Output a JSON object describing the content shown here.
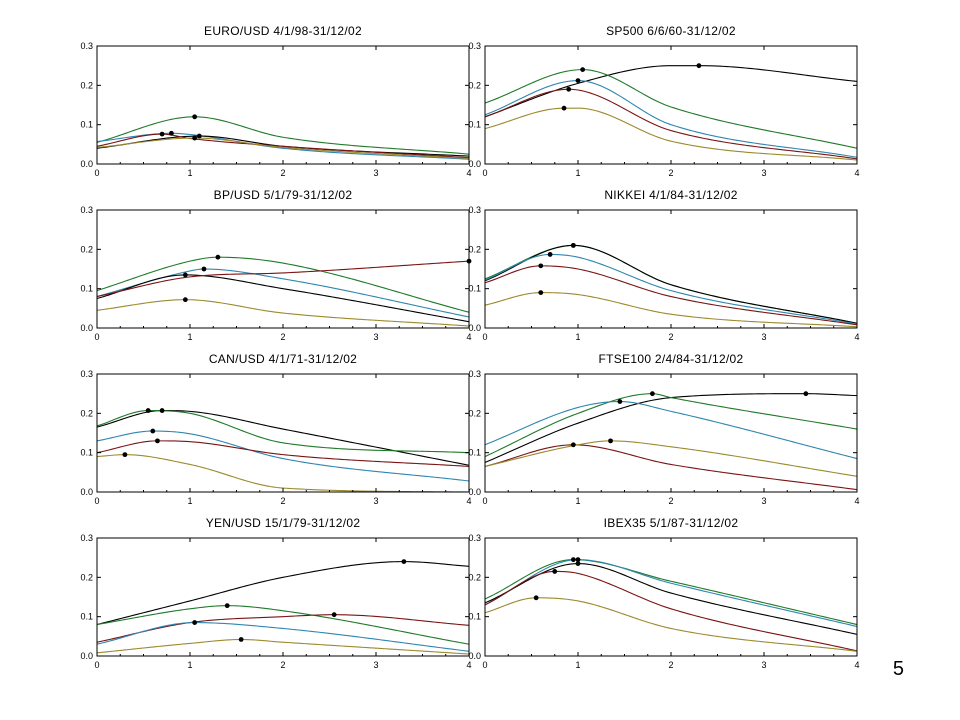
{
  "page": {
    "number": "5"
  },
  "colors": {
    "black": "#000000",
    "green": "#1f7a2a",
    "blue": "#2f86b0",
    "red": "#7a1414",
    "olive": "#9c8a2e"
  },
  "chart_data": [
    {
      "type": "line",
      "title": "EURO/USD 4/1/98-31/12/02",
      "xlim": [
        0,
        4
      ],
      "ylim": [
        0,
        0.3
      ],
      "xticks": [
        "0",
        "1",
        "2",
        "3",
        "4"
      ],
      "yticks": [
        "0.0",
        "0.1",
        "0.2",
        "0.3"
      ],
      "series": [
        {
          "color": "green",
          "peak": [
            1.05,
            0.12
          ],
          "values": [
            0.055,
            0.12,
            0.068,
            0.025
          ]
        },
        {
          "color": "blue",
          "peak": [
            0.8,
            0.078
          ],
          "values": [
            0.057,
            0.075,
            0.04,
            0.012
          ]
        },
        {
          "color": "black",
          "peak": [
            1.1,
            0.071
          ],
          "values": [
            0.04,
            0.07,
            0.045,
            0.02
          ]
        },
        {
          "color": "red",
          "peak": [
            0.7,
            0.076
          ],
          "values": [
            0.045,
            0.065,
            0.045,
            0.016
          ]
        },
        {
          "color": "olive",
          "peak": [
            1.05,
            0.066
          ],
          "values": [
            0.042,
            0.066,
            0.042,
            0.014
          ]
        }
      ]
    },
    {
      "type": "line",
      "title": "SP500 6/6/60-31/12/02",
      "xlim": [
        0,
        4
      ],
      "ylim": [
        0,
        0.3
      ],
      "xticks": [
        "0",
        "1",
        "2",
        "3",
        "4"
      ],
      "yticks": [
        "0.0",
        "0.1",
        "0.2",
        "0.3"
      ],
      "series": [
        {
          "color": "black",
          "peak": [
            2.3,
            0.25
          ],
          "values": [
            0.12,
            0.205,
            0.25,
            0.21
          ]
        },
        {
          "color": "green",
          "peak": [
            1.05,
            0.24
          ],
          "values": [
            0.155,
            0.24,
            0.145,
            0.04
          ]
        },
        {
          "color": "blue",
          "peak": [
            1.0,
            0.212
          ],
          "values": [
            0.125,
            0.212,
            0.1,
            0.017
          ]
        },
        {
          "color": "red",
          "peak": [
            0.9,
            0.19
          ],
          "values": [
            0.12,
            0.19,
            0.085,
            0.013
          ]
        },
        {
          "color": "olive",
          "peak": [
            0.85,
            0.142
          ],
          "values": [
            0.09,
            0.142,
            0.058,
            0.01
          ]
        }
      ]
    },
    {
      "type": "line",
      "title": "BP/USD 5/1/79-31/12/02",
      "xlim": [
        0,
        4
      ],
      "ylim": [
        0,
        0.3
      ],
      "xticks": [
        "0",
        "1",
        "2",
        "3",
        "4"
      ],
      "yticks": [
        "0.0",
        "0.1",
        "0.2",
        "0.3"
      ],
      "series": [
        {
          "color": "green",
          "peak": [
            1.3,
            0.18
          ],
          "values": [
            0.095,
            0.17,
            0.165,
            0.04
          ]
        },
        {
          "color": "blue",
          "peak": [
            1.15,
            0.15
          ],
          "values": [
            0.08,
            0.145,
            0.125,
            0.028
          ]
        },
        {
          "color": "black",
          "peak": [
            0.95,
            0.135
          ],
          "values": [
            0.075,
            0.132,
            0.1,
            0.016
          ]
        },
        {
          "color": "red",
          "peak": [
            4.0,
            0.17
          ],
          "values": [
            0.08,
            0.13,
            0.14,
            0.17
          ]
        },
        {
          "color": "olive",
          "peak": [
            0.95,
            0.072
          ],
          "values": [
            0.045,
            0.072,
            0.038,
            0.005
          ]
        }
      ]
    },
    {
      "type": "line",
      "title": "NIKKEI 4/1/84-31/12/02",
      "xlim": [
        0,
        4
      ],
      "ylim": [
        0,
        0.3
      ],
      "xticks": [
        "0",
        "1",
        "2",
        "3",
        "4"
      ],
      "yticks": [
        "0.0",
        "0.1",
        "0.2",
        "0.3"
      ],
      "series": [
        {
          "color": "green",
          "peak": [
            0.95,
            0.21
          ],
          "values": [
            0.125,
            0.21,
            0.11,
            0.012
          ]
        },
        {
          "color": "black",
          "peak": [
            0.95,
            0.21
          ],
          "values": [
            0.12,
            0.208,
            0.11,
            0.012
          ]
        },
        {
          "color": "blue",
          "peak": [
            0.7,
            0.187
          ],
          "values": [
            0.122,
            0.18,
            0.095,
            0.01
          ]
        },
        {
          "color": "red",
          "peak": [
            0.6,
            0.158
          ],
          "values": [
            0.115,
            0.15,
            0.08,
            0.008
          ]
        },
        {
          "color": "olive",
          "peak": [
            0.6,
            0.09
          ],
          "values": [
            0.058,
            0.085,
            0.035,
            0.003
          ]
        }
      ]
    },
    {
      "type": "line",
      "title": "CAN/USD 4/1/71-31/12/02",
      "xlim": [
        0,
        4
      ],
      "ylim": [
        0,
        0.3
      ],
      "xticks": [
        "0",
        "1",
        "2",
        "3",
        "4"
      ],
      "yticks": [
        "0.0",
        "0.1",
        "0.2",
        "0.3"
      ],
      "series": [
        {
          "color": "black",
          "peak": [
            0.7,
            0.207
          ],
          "values": [
            0.165,
            0.205,
            0.16,
            0.068
          ]
        },
        {
          "color": "green",
          "peak": [
            0.55,
            0.207
          ],
          "values": [
            0.168,
            0.2,
            0.125,
            0.1
          ]
        },
        {
          "color": "blue",
          "peak": [
            0.6,
            0.155
          ],
          "values": [
            0.13,
            0.148,
            0.085,
            0.028
          ]
        },
        {
          "color": "red",
          "peak": [
            0.65,
            0.13
          ],
          "values": [
            0.1,
            0.128,
            0.095,
            0.065
          ]
        },
        {
          "color": "olive",
          "peak": [
            0.3,
            0.095
          ],
          "values": [
            0.09,
            0.07,
            0.01,
            0.0
          ]
        }
      ]
    },
    {
      "type": "line",
      "title": "FTSE100 2/4/84-31/12/02",
      "xlim": [
        0,
        4
      ],
      "ylim": [
        0,
        0.3
      ],
      "xticks": [
        "0",
        "1",
        "2",
        "3",
        "4"
      ],
      "yticks": [
        "0.0",
        "0.1",
        "0.2",
        "0.3"
      ],
      "series": [
        {
          "color": "black",
          "peak": [
            3.45,
            0.25
          ],
          "values": [
            0.075,
            0.175,
            0.24,
            0.245
          ]
        },
        {
          "color": "green",
          "peak": [
            1.8,
            0.25
          ],
          "values": [
            0.09,
            0.2,
            0.24,
            0.16
          ]
        },
        {
          "color": "blue",
          "peak": [
            1.45,
            0.23
          ],
          "values": [
            0.12,
            0.215,
            0.205,
            0.085
          ]
        },
        {
          "color": "red",
          "peak": [
            0.95,
            0.12
          ],
          "values": [
            0.065,
            0.12,
            0.07,
            0.006
          ]
        },
        {
          "color": "olive",
          "peak": [
            1.35,
            0.13
          ],
          "values": [
            0.065,
            0.12,
            0.115,
            0.04
          ]
        }
      ]
    },
    {
      "type": "line",
      "title": "YEN/USD 15/1/79-31/12/02",
      "xlim": [
        0,
        4
      ],
      "ylim": [
        0,
        0.3
      ],
      "xticks": [
        "0",
        "1",
        "2",
        "3",
        "4"
      ],
      "yticks": [
        "0.0",
        "0.1",
        "0.2",
        "0.3"
      ],
      "series": [
        {
          "color": "black",
          "peak": [
            3.3,
            0.24
          ],
          "values": [
            0.08,
            0.14,
            0.2,
            0.228
          ]
        },
        {
          "color": "green",
          "peak": [
            1.4,
            0.128
          ],
          "values": [
            0.08,
            0.12,
            0.115,
            0.03
          ]
        },
        {
          "color": "red",
          "peak": [
            2.55,
            0.105
          ],
          "values": [
            0.035,
            0.085,
            0.1,
            0.078
          ]
        },
        {
          "color": "blue",
          "peak": [
            1.05,
            0.085
          ],
          "values": [
            0.03,
            0.082,
            0.07,
            0.012
          ]
        },
        {
          "color": "olive",
          "peak": [
            1.55,
            0.042
          ],
          "values": [
            0.008,
            0.032,
            0.035,
            0.005
          ]
        }
      ]
    },
    {
      "type": "line",
      "title": "IBEX35 5/1/87-31/12/02",
      "xlim": [
        0,
        4
      ],
      "ylim": [
        0,
        0.3
      ],
      "xticks": [
        "0",
        "1",
        "2",
        "3",
        "4"
      ],
      "yticks": [
        "0.0",
        "0.1",
        "0.2",
        "0.3"
      ],
      "series": [
        {
          "color": "green",
          "peak": [
            0.95,
            0.245
          ],
          "values": [
            0.145,
            0.245,
            0.19,
            0.08
          ]
        },
        {
          "color": "blue",
          "peak": [
            1.0,
            0.245
          ],
          "values": [
            0.13,
            0.245,
            0.185,
            0.075
          ]
        },
        {
          "color": "black",
          "peak": [
            1.0,
            0.235
          ],
          "values": [
            0.135,
            0.235,
            0.16,
            0.055
          ]
        },
        {
          "color": "red",
          "peak": [
            0.75,
            0.215
          ],
          "values": [
            0.13,
            0.21,
            0.12,
            0.013
          ]
        },
        {
          "color": "olive",
          "peak": [
            0.55,
            0.148
          ],
          "values": [
            0.11,
            0.14,
            0.07,
            0.012
          ]
        }
      ]
    }
  ]
}
